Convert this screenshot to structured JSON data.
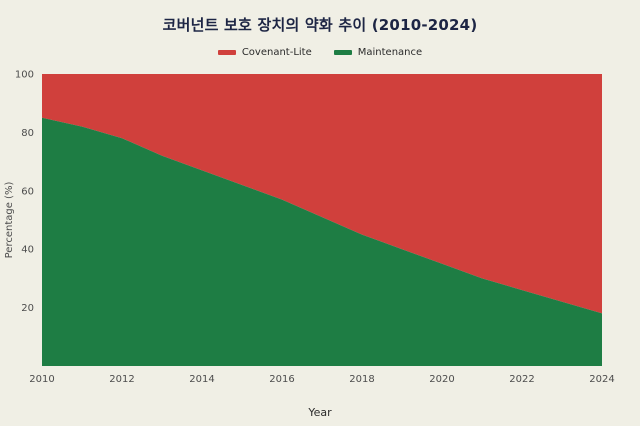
{
  "title": "코버넌트 보호 장치의 약화 추이 (2010-2024)",
  "colors": {
    "background": "#f0efe5",
    "title": "#1d2544",
    "covenant_lite": "#d0403c",
    "maintenance": "#1e7d44",
    "tick_text": "#4d4d4d"
  },
  "chart_data": {
    "type": "area",
    "stacked": true,
    "title": "코버넌트 보호 장치의 약화 추이 (2010-2024)",
    "xlabel": "Year",
    "ylabel": "Percentage (%)",
    "x": [
      2010,
      2011,
      2012,
      2013,
      2014,
      2015,
      2016,
      2017,
      2018,
      2019,
      2020,
      2021,
      2022,
      2023,
      2024
    ],
    "series": [
      {
        "name": "Covenant-Lite",
        "color": "#d0403c",
        "values": [
          15,
          18,
          22,
          28,
          33,
          38,
          43,
          49,
          55,
          60,
          65,
          70,
          74,
          78,
          82
        ]
      },
      {
        "name": "Maintenance",
        "color": "#1e7d44",
        "values": [
          85,
          82,
          78,
          72,
          67,
          62,
          57,
          51,
          45,
          40,
          35,
          30,
          26,
          22,
          18
        ]
      }
    ],
    "xlim": [
      2010,
      2024
    ],
    "ylim": [
      0,
      100
    ],
    "x_ticks": [
      2010,
      2012,
      2014,
      2016,
      2018,
      2020,
      2022,
      2024
    ],
    "y_ticks": [
      20,
      40,
      60,
      80,
      100
    ],
    "grid": false,
    "legend_position": "top"
  }
}
